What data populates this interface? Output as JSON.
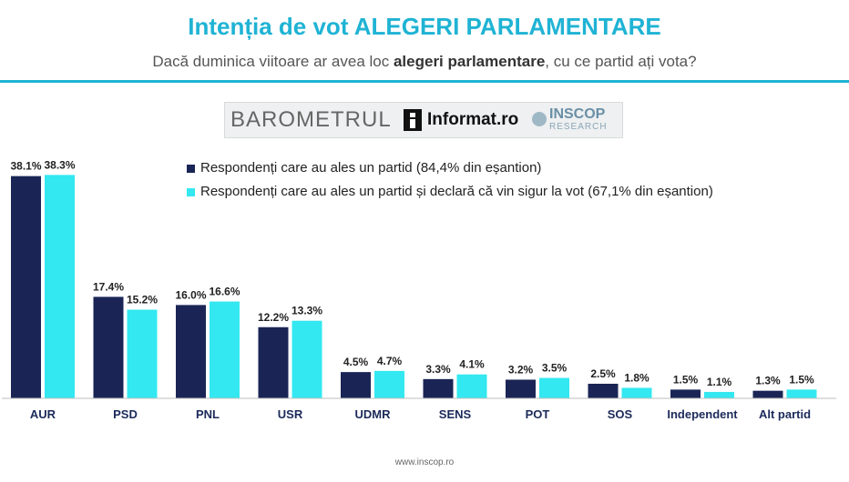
{
  "header": {
    "title": "Intenția de vot ALEGERI PARLAMENTARE",
    "subtitle_pre": "Dacă duminica viitoare ar avea loc ",
    "subtitle_bold": "alegeri parlamentare",
    "subtitle_post": ", cu ce partid ați vota?"
  },
  "banner": {
    "barometrul": "BAROMETRUL",
    "informat": "Informat.ro",
    "inscop": "INSCOP",
    "research": "RESEARCH"
  },
  "footer": {
    "url": "www.inscop.ro"
  },
  "colors": {
    "accent": "#1fb3d4",
    "series1": "#1a2556",
    "series2": "#33e8f0"
  },
  "chart_data": {
    "type": "bar",
    "title": "Intenția de vot ALEGERI PARLAMENTARE",
    "categories": [
      "AUR",
      "PSD",
      "PNL",
      "USR",
      "UDMR",
      "SENS",
      "POT",
      "SOS",
      "Independent",
      "Alt partid"
    ],
    "series": [
      {
        "name": "Respondenți care au ales un partid (84,4% din eșantion)",
        "values": [
          38.1,
          17.4,
          16.0,
          12.2,
          4.5,
          3.3,
          3.2,
          2.5,
          1.5,
          1.3
        ],
        "labels": [
          "38.1%",
          "17.4%",
          "16.0%",
          "12.2%",
          "4.5%",
          "3.3%",
          "3.2%",
          "2.5%",
          "1.5%",
          "1.3%"
        ],
        "color": "#1a2556"
      },
      {
        "name": "Respondenți care au ales un partid și declară că vin sigur la vot (67,1% din eșantion)",
        "values": [
          38.3,
          15.2,
          16.6,
          13.3,
          4.7,
          4.1,
          3.5,
          1.8,
          1.1,
          1.5
        ],
        "labels": [
          "38.3%",
          "15.2%",
          "16.6%",
          "13.3%",
          "4.7%",
          "4.1%",
          "3.5%",
          "1.8%",
          "1.1%",
          "1.5%"
        ],
        "color": "#33e8f0"
      }
    ],
    "ylim": [
      0,
      40
    ],
    "grid": false,
    "legend": "top-center"
  }
}
